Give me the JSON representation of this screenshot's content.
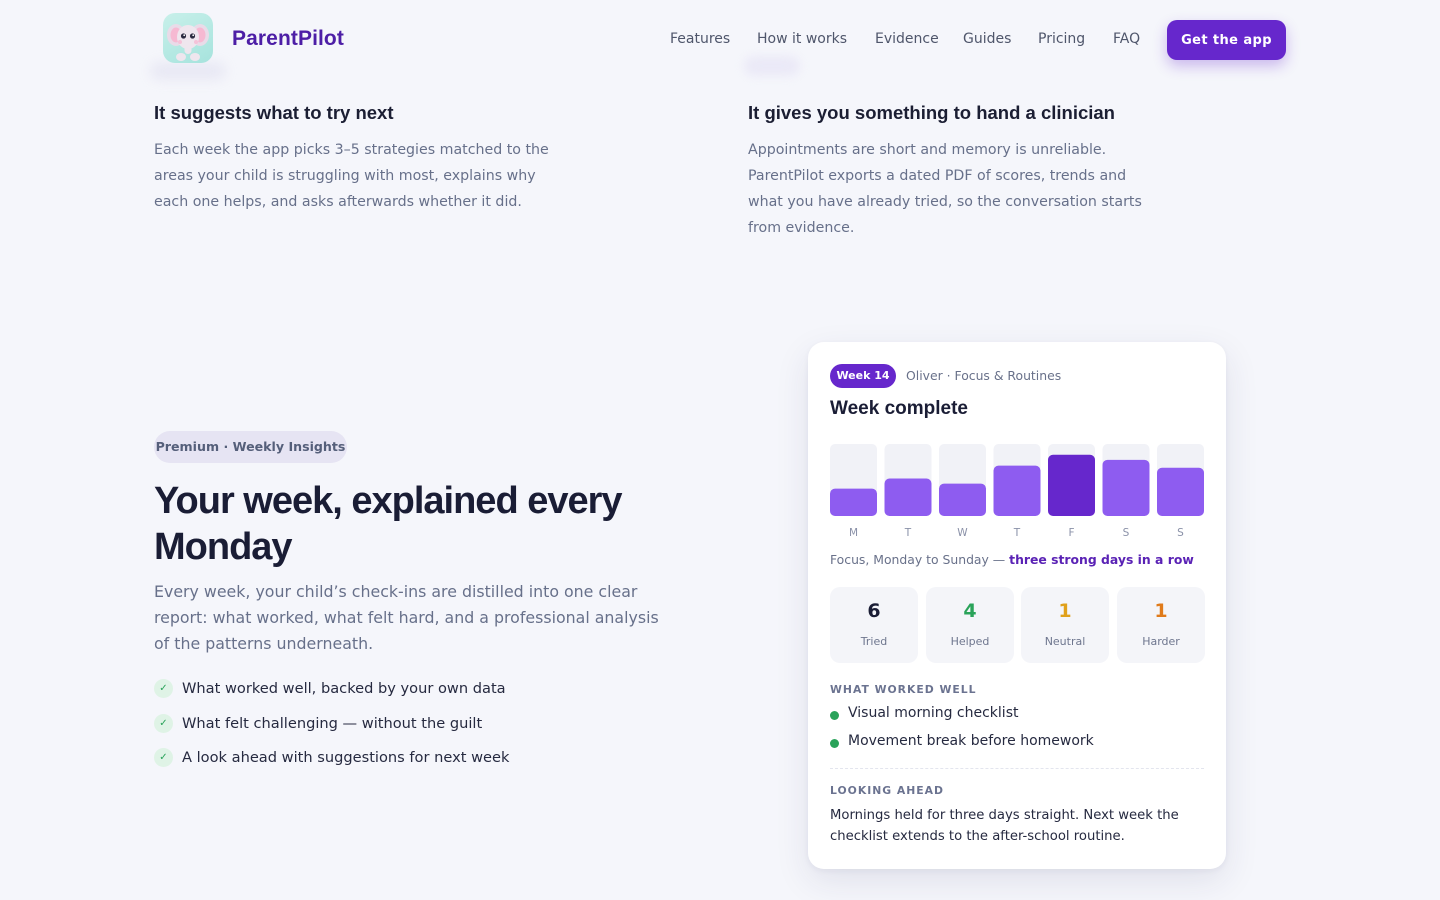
{
  "header": {
    "brand": "ParentPilot",
    "nav": [
      "Features",
      "How it works",
      "Evidence",
      "Guides",
      "Pricing",
      "FAQ"
    ],
    "cta_label": "Get the app",
    "logo_icon": "elephant-mascot-icon"
  },
  "features": [
    {
      "title": "It suggests what to try next",
      "text": "Each week the app picks 3–5 strategies matched to the areas your child is struggling with most, explains why each one helps, and asks afterwards whether it did."
    },
    {
      "title": "It gives you something to hand a clinician",
      "text": "Appointments are short and memory is unreliable. ParentPilot exports a dated PDF of scores, trends and what you have already tried, so the conversation starts from evidence."
    }
  ],
  "insights": {
    "pill": "Premium · Weekly Insights",
    "headline": "Your week, explained every Monday",
    "lead": "Every week, your child’s check-ins are distilled into one clear report: what worked, what felt hard, and a professional analysis of the patterns underneath.",
    "checks": [
      "What worked well, backed by your own data",
      "What felt challenging — without the guilt",
      "A look ahead with suggestions for next week"
    ],
    "check_icon": "checkmark-icon"
  },
  "report": {
    "week_badge": "Week 14",
    "subtitle": "Oliver · Focus & Routines",
    "title": "Week complete",
    "caption_prefix": "Focus, Monday to Sunday — ",
    "caption_highlight": "three strong days in a row",
    "stats": [
      {
        "value": "6",
        "label": "Tried",
        "color": "#1a1d35"
      },
      {
        "value": "4",
        "label": "Helped",
        "color": "#2aa35a"
      },
      {
        "value": "1",
        "label": "Neutral",
        "color": "#e0a11b"
      },
      {
        "value": "1",
        "label": "Harder",
        "color": "#e07b1b"
      }
    ],
    "worked_label": "WHAT WORKED WELL",
    "worked_items": [
      "Visual morning checklist",
      "Movement break before homework"
    ],
    "ahead_label": "LOOKING AHEAD",
    "ahead_text": "Mornings held for three days straight. Next week the checklist extends to the after-school routine."
  },
  "chart_data": {
    "type": "bar",
    "categories": [
      "M",
      "T",
      "W",
      "T",
      "F",
      "S",
      "S"
    ],
    "values": [
      0.38,
      0.52,
      0.45,
      0.7,
      0.85,
      0.78,
      0.67
    ],
    "ylim": [
      0,
      1
    ],
    "grid": false,
    "colors": {
      "bar": "#8e5cf0",
      "highlight": "#6627cc",
      "track": "#f1f2f7"
    },
    "highlight_index": 4
  }
}
